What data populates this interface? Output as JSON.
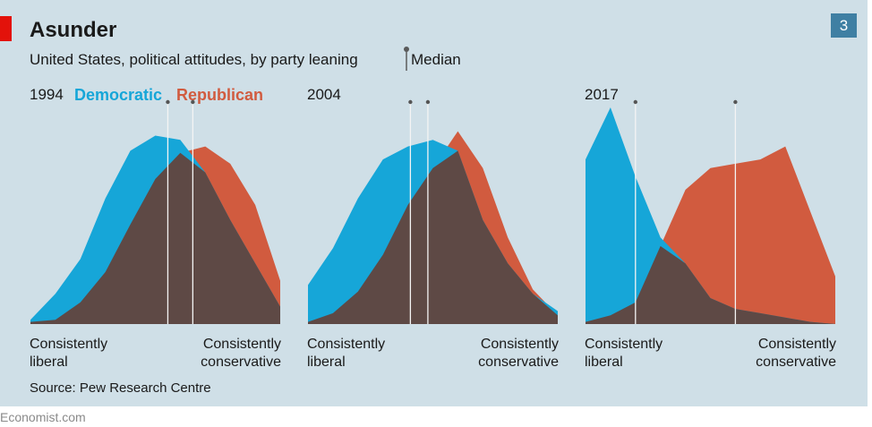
{
  "header": {
    "title": "Asunder",
    "subtitle": "United States, political attitudes, by party leaning",
    "median_label": "Median",
    "badge": "3"
  },
  "legend": {
    "democratic": "Democratic",
    "republican": "Republican"
  },
  "axis": {
    "left_line1": "Consistently",
    "left_line2": "liberal",
    "right_line1": "Consistently",
    "right_line2": "conservative"
  },
  "source": "Source: Pew Research Centre",
  "footer": "Economist.com",
  "colors": {
    "democratic": "#16a6d8",
    "republican": "#d15b3f",
    "overlap": "#5e4945",
    "background": "#cfdfe7",
    "accent_red": "#e3120b",
    "badge": "#3f7fa3"
  },
  "chart_data": [
    {
      "type": "area",
      "year": "1994",
      "x": [
        0,
        1,
        2,
        3,
        4,
        5,
        6,
        7,
        8,
        9,
        10
      ],
      "series": [
        {
          "name": "Democratic",
          "values": [
            2,
            14,
            30,
            58,
            80,
            87,
            85,
            70,
            48,
            28,
            8
          ]
        },
        {
          "name": "Republican",
          "values": [
            1,
            2,
            10,
            24,
            46,
            67,
            79,
            82,
            74,
            55,
            20
          ]
        }
      ],
      "median": {
        "democratic": 5.5,
        "republican": 6.5
      },
      "ylim": [
        0,
        100
      ]
    },
    {
      "type": "area",
      "year": "2004",
      "x": [
        0,
        1,
        2,
        3,
        4,
        5,
        6,
        7,
        8,
        9,
        10
      ],
      "series": [
        {
          "name": "Democratic",
          "values": [
            18,
            35,
            58,
            76,
            82,
            85,
            80,
            48,
            28,
            14,
            6
          ]
        },
        {
          "name": "Republican",
          "values": [
            1,
            5,
            15,
            32,
            55,
            72,
            89,
            72,
            40,
            16,
            4
          ]
        }
      ],
      "median": {
        "democratic": 4.1,
        "republican": 4.8
      },
      "ylim": [
        0,
        100
      ]
    },
    {
      "type": "area",
      "year": "2017",
      "x": [
        0,
        1,
        2,
        3,
        4,
        5,
        6,
        7,
        8,
        9,
        10
      ],
      "series": [
        {
          "name": "Democratic",
          "values": [
            76,
            100,
            68,
            40,
            28,
            12,
            7,
            5,
            3,
            1,
            0
          ]
        },
        {
          "name": "Republican",
          "values": [
            1,
            4,
            10,
            36,
            62,
            72,
            74,
            76,
            82,
            52,
            22
          ]
        }
      ],
      "median": {
        "democratic": 2.0,
        "republican": 6.0
      },
      "ylim": [
        0,
        100
      ]
    }
  ]
}
